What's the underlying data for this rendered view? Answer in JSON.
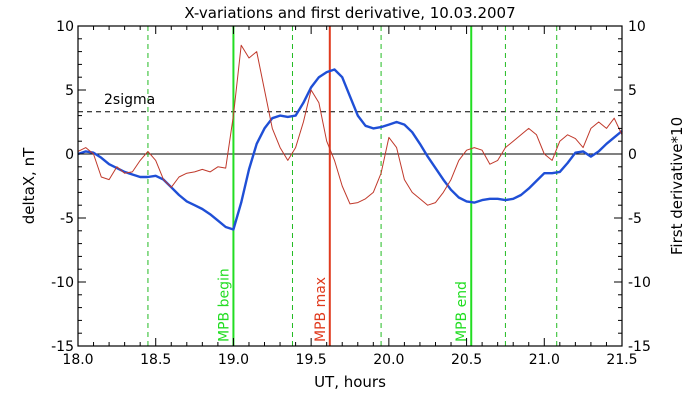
{
  "chart_data": {
    "type": "line",
    "title": "X-variations and first derivative, 10.03.2007",
    "xlabel": "UT, hours",
    "ylabel_left": "deltaX, nT",
    "ylabel_right": "First derivative*10",
    "xlim": [
      18.0,
      21.5
    ],
    "ylim": [
      -15,
      10
    ],
    "x_ticks": [
      "18.0",
      "18.5",
      "19.0",
      "19.5",
      "20.0",
      "20.5",
      "21.0",
      "21.5"
    ],
    "x_tick_values": [
      18.0,
      18.5,
      19.0,
      19.5,
      20.0,
      20.5,
      21.0,
      21.5
    ],
    "y_ticks": [
      "10",
      "5",
      "0",
      "-5",
      "-10",
      "-15"
    ],
    "y_tick_values": [
      10,
      5,
      0,
      -5,
      -10,
      -15
    ],
    "colors": {
      "deltaX": "#1f4fd6",
      "derivative": "#c0392b",
      "sigma": "#000000",
      "mpb_edges": "#22dd22",
      "mpb_max": "#e03a1e",
      "dashed_green": "#22bb22"
    },
    "reference_lines": {
      "zero": 0,
      "two_sigma": {
        "label": "2sigma",
        "y": 3.3
      }
    },
    "vertical_markers": [
      {
        "label": "MPB begin",
        "x": 19.0,
        "style": "solid-green"
      },
      {
        "label": "MPB max",
        "x": 19.62,
        "style": "solid-red"
      },
      {
        "label": "MPB end",
        "x": 20.53,
        "style": "solid-green"
      }
    ],
    "dashed_verticals": [
      18.45,
      19.38,
      19.95,
      20.75,
      21.08
    ],
    "series": [
      {
        "key": "deltaX",
        "x": [
          18.0,
          18.05,
          18.1,
          18.15,
          18.2,
          18.25,
          18.3,
          18.35,
          18.4,
          18.45,
          18.5,
          18.55,
          18.6,
          18.65,
          18.7,
          18.75,
          18.8,
          18.85,
          18.9,
          18.95,
          19.0,
          19.05,
          19.1,
          19.15,
          19.2,
          19.25,
          19.3,
          19.35,
          19.4,
          19.45,
          19.5,
          19.55,
          19.6,
          19.65,
          19.7,
          19.75,
          19.8,
          19.85,
          19.9,
          19.95,
          20.0,
          20.05,
          20.1,
          20.15,
          20.2,
          20.25,
          20.3,
          20.35,
          20.4,
          20.45,
          20.5,
          20.55,
          20.6,
          20.65,
          20.7,
          20.75,
          20.8,
          20.85,
          20.9,
          20.95,
          21.0,
          21.05,
          21.1,
          21.15,
          21.2,
          21.25,
          21.3,
          21.35,
          21.4,
          21.45,
          21.5
        ],
        "y": [
          0.0,
          0.2,
          0.1,
          -0.3,
          -0.8,
          -1.1,
          -1.4,
          -1.6,
          -1.8,
          -1.8,
          -1.7,
          -2.0,
          -2.6,
          -3.2,
          -3.7,
          -4.0,
          -4.3,
          -4.7,
          -5.2,
          -5.7,
          -5.9,
          -3.8,
          -1.2,
          0.8,
          2.0,
          2.8,
          3.0,
          2.9,
          3.0,
          4.0,
          5.2,
          6.0,
          6.4,
          6.6,
          6.0,
          4.5,
          3.0,
          2.2,
          2.0,
          2.1,
          2.3,
          2.5,
          2.3,
          1.7,
          0.8,
          -0.2,
          -1.1,
          -2.0,
          -2.8,
          -3.4,
          -3.7,
          -3.8,
          -3.6,
          -3.5,
          -3.5,
          -3.6,
          -3.5,
          -3.2,
          -2.7,
          -2.1,
          -1.5,
          -1.5,
          -1.4,
          -0.7,
          0.1,
          0.2,
          -0.2,
          0.2,
          0.8,
          1.3,
          1.8
        ]
      },
      {
        "key": "derivative",
        "x": [
          18.0,
          18.05,
          18.1,
          18.15,
          18.2,
          18.25,
          18.3,
          18.35,
          18.4,
          18.45,
          18.5,
          18.55,
          18.6,
          18.65,
          18.7,
          18.75,
          18.8,
          18.85,
          18.9,
          18.95,
          19.0,
          19.05,
          19.1,
          19.15,
          19.2,
          19.25,
          19.3,
          19.35,
          19.4,
          19.45,
          19.5,
          19.55,
          19.6,
          19.65,
          19.7,
          19.75,
          19.8,
          19.85,
          19.9,
          19.95,
          20.0,
          20.05,
          20.1,
          20.15,
          20.2,
          20.25,
          20.3,
          20.35,
          20.4,
          20.45,
          20.5,
          20.55,
          20.6,
          20.65,
          20.7,
          20.75,
          20.8,
          20.85,
          20.9,
          20.95,
          21.0,
          21.05,
          21.1,
          21.15,
          21.2,
          21.25,
          21.3,
          21.35,
          21.4,
          21.45,
          21.5
        ],
        "y": [
          0.2,
          0.5,
          0.0,
          -1.8,
          -2.0,
          -1.0,
          -1.5,
          -1.4,
          -0.5,
          0.2,
          -0.5,
          -2.0,
          -2.6,
          -1.8,
          -1.5,
          -1.4,
          -1.2,
          -1.4,
          -1.0,
          -1.1,
          3.0,
          8.5,
          7.5,
          8.0,
          5.0,
          2.0,
          0.5,
          -0.5,
          0.5,
          2.5,
          5.0,
          4.0,
          1.0,
          -0.5,
          -2.5,
          -3.9,
          -3.8,
          -3.5,
          -3.0,
          -1.5,
          1.3,
          0.5,
          -2.0,
          -3.0,
          -3.5,
          -4.0,
          -3.8,
          -3.0,
          -2.0,
          -0.5,
          0.3,
          0.5,
          0.3,
          -0.8,
          -0.5,
          0.5,
          1.0,
          1.5,
          2.0,
          1.5,
          0.0,
          -0.5,
          1.0,
          1.5,
          1.2,
          0.5,
          2.0,
          2.5,
          2.0,
          2.8,
          1.5
        ]
      }
    ]
  }
}
